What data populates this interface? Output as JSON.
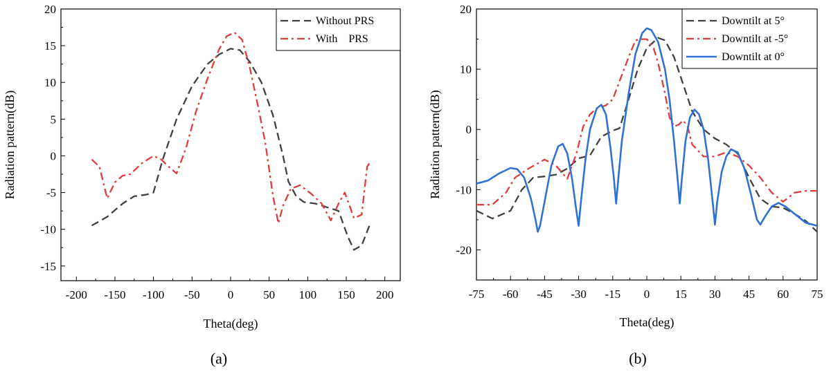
{
  "chart_data": [
    {
      "type": "line",
      "panel_label": "(a)",
      "xlabel": "Theta(deg)",
      "ylabel": "Radiation pattern(dB)",
      "xlim": [
        -220,
        220
      ],
      "ylim": [
        -17,
        20
      ],
      "xticks": [
        -200,
        -150,
        -100,
        -50,
        0,
        50,
        100,
        150,
        200
      ],
      "yticks": [
        -15,
        -10,
        -5,
        0,
        5,
        10,
        15,
        20
      ],
      "grid": false,
      "legend_position": "top-right",
      "series": [
        {
          "name": "Without PRS",
          "color": "#404040",
          "dash": "dashed",
          "points": [
            [
              -180,
              -9.5
            ],
            [
              -160,
              -8.3
            ],
            [
              -140,
              -6.5
            ],
            [
              -125,
              -5.5
            ],
            [
              -110,
              -5.3
            ],
            [
              -100,
              -5
            ],
            [
              -88,
              -0.5
            ],
            [
              -70,
              5
            ],
            [
              -50,
              9.5
            ],
            [
              -30,
              12.5
            ],
            [
              -15,
              13.8
            ],
            [
              0,
              14.6
            ],
            [
              12,
              14.4
            ],
            [
              25,
              12.8
            ],
            [
              40,
              10
            ],
            [
              55,
              5.5
            ],
            [
              68,
              0
            ],
            [
              75,
              -3.5
            ],
            [
              85,
              -5.5
            ],
            [
              95,
              -6.3
            ],
            [
              110,
              -6.5
            ],
            [
              125,
              -7
            ],
            [
              140,
              -7.5
            ],
            [
              152,
              -11
            ],
            [
              160,
              -12.8
            ],
            [
              170,
              -12.2
            ],
            [
              180,
              -9.5
            ]
          ]
        },
        {
          "name": "With    PRS",
          "color": "#e03c3c",
          "dash": "dashdot",
          "points": [
            [
              -180,
              -0.5
            ],
            [
              -170,
              -1.5
            ],
            [
              -160,
              -5.8
            ],
            [
              -150,
              -3.6
            ],
            [
              -140,
              -2.7
            ],
            [
              -130,
              -2.5
            ],
            [
              -115,
              -1
            ],
            [
              -100,
              0
            ],
            [
              -90,
              -0.5
            ],
            [
              -80,
              -1.5
            ],
            [
              -70,
              -2.4
            ],
            [
              -58,
              1
            ],
            [
              -45,
              6
            ],
            [
              -30,
              10.5
            ],
            [
              -15,
              14.5
            ],
            [
              -5,
              16.3
            ],
            [
              5,
              16.8
            ],
            [
              15,
              15.8
            ],
            [
              25,
              12
            ],
            [
              35,
              7
            ],
            [
              45,
              1.8
            ],
            [
              55,
              -5.5
            ],
            [
              62,
              -9.2
            ],
            [
              68,
              -6.8
            ],
            [
              78,
              -4.5
            ],
            [
              90,
              -4
            ],
            [
              105,
              -5.2
            ],
            [
              118,
              -6.5
            ],
            [
              130,
              -8.8
            ],
            [
              140,
              -6.5
            ],
            [
              148,
              -5
            ],
            [
              155,
              -7
            ],
            [
              160,
              -8.5
            ],
            [
              170,
              -8
            ],
            [
              177,
              -1.5
            ],
            [
              180,
              -1
            ]
          ]
        }
      ]
    },
    {
      "type": "line",
      "panel_label": "(b)",
      "xlabel": "Theta(deg)",
      "ylabel": "Radiation pattern(dB)",
      "xlim": [
        -75,
        75
      ],
      "ylim": [
        -25,
        20
      ],
      "xticks": [
        -75,
        -60,
        -45,
        -30,
        -15,
        0,
        15,
        30,
        45,
        60,
        75
      ],
      "yticks": [
        -20,
        -10,
        0,
        10,
        20
      ],
      "grid": false,
      "legend_position": "top-right",
      "series": [
        {
          "name": "Downtilt at 5°",
          "color": "#404040",
          "dash": "dashed",
          "points": [
            [
              -75,
              -13.5
            ],
            [
              -68,
              -14.8
            ],
            [
              -60,
              -13.5
            ],
            [
              -55,
              -10
            ],
            [
              -50,
              -8
            ],
            [
              -45,
              -7.8
            ],
            [
              -40,
              -7.5
            ],
            [
              -35,
              -6.5
            ],
            [
              -30,
              -4.8
            ],
            [
              -25,
              -4.3
            ],
            [
              -20,
              -1.2
            ],
            [
              -15,
              -0.2
            ],
            [
              -12,
              0.2
            ],
            [
              -8,
              5
            ],
            [
              -4,
              10
            ],
            [
              0,
              13.5
            ],
            [
              5,
              15.2
            ],
            [
              8,
              14.8
            ],
            [
              12,
              12
            ],
            [
              16,
              7.5
            ],
            [
              20,
              3
            ],
            [
              25,
              0
            ],
            [
              30,
              -1.5
            ],
            [
              35,
              -2.5
            ],
            [
              40,
              -4
            ],
            [
              45,
              -8
            ],
            [
              50,
              -11.5
            ],
            [
              55,
              -12.8
            ],
            [
              60,
              -13
            ],
            [
              65,
              -14
            ],
            [
              70,
              -15.2
            ],
            [
              75,
              -17
            ]
          ]
        },
        {
          "name": "Downtilt at -5°",
          "color": "#e03c3c",
          "dash": "dashdot",
          "points": [
            [
              -75,
              -12.5
            ],
            [
              -68,
              -12.5
            ],
            [
              -62,
              -10.5
            ],
            [
              -58,
              -8
            ],
            [
              -52,
              -6.5
            ],
            [
              -45,
              -5
            ],
            [
              -40,
              -6
            ],
            [
              -35,
              -8.2
            ],
            [
              -31,
              -4
            ],
            [
              -28,
              0.5
            ],
            [
              -25,
              2.5
            ],
            [
              -22,
              3.5
            ],
            [
              -18,
              4
            ],
            [
              -15,
              5
            ],
            [
              -12,
              8
            ],
            [
              -8,
              12
            ],
            [
              -5,
              14.8
            ],
            [
              -2,
              15
            ],
            [
              0,
              15
            ],
            [
              3,
              13.5
            ],
            [
              5,
              11
            ],
            [
              8,
              6
            ],
            [
              10,
              2
            ],
            [
              12,
              0.5
            ],
            [
              14,
              0.8
            ],
            [
              16,
              1.5
            ],
            [
              18,
              0.5
            ],
            [
              20,
              -2.5
            ],
            [
              25,
              -4.5
            ],
            [
              30,
              -4.5
            ],
            [
              35,
              -3.8
            ],
            [
              40,
              -4.5
            ],
            [
              45,
              -6
            ],
            [
              50,
              -8
            ],
            [
              55,
              -10.5
            ],
            [
              60,
              -12
            ],
            [
              65,
              -10.5
            ],
            [
              70,
              -10.2
            ],
            [
              75,
              -10.2
            ]
          ]
        },
        {
          "name": "Downtilt at 0°",
          "color": "#2f72d4",
          "dash": "solid",
          "points": [
            [
              -75,
              -9
            ],
            [
              -70,
              -8.5
            ],
            [
              -65,
              -7.3
            ],
            [
              -60,
              -6.4
            ],
            [
              -57,
              -6.6
            ],
            [
              -54,
              -8
            ],
            [
              -51,
              -11.5
            ],
            [
              -49,
              -15
            ],
            [
              -48,
              -17
            ],
            [
              -47,
              -16
            ],
            [
              -45,
              -12
            ],
            [
              -42,
              -6
            ],
            [
              -39,
              -2.8
            ],
            [
              -37,
              -2.4
            ],
            [
              -35,
              -4
            ],
            [
              -33,
              -8
            ],
            [
              -31,
              -13.5
            ],
            [
              -30,
              -16
            ],
            [
              -29,
              -12
            ],
            [
              -27,
              -5
            ],
            [
              -25,
              0
            ],
            [
              -22,
              3.5
            ],
            [
              -20,
              4.1
            ],
            [
              -18,
              2.5
            ],
            [
              -16,
              -3
            ],
            [
              -14.5,
              -8
            ],
            [
              -13.5,
              -12.3
            ],
            [
              -12.5,
              -8
            ],
            [
              -11,
              -2
            ],
            [
              -8,
              6
            ],
            [
              -5,
              12.5
            ],
            [
              -2,
              16
            ],
            [
              0,
              16.8
            ],
            [
              2,
              16.5
            ],
            [
              5,
              14.5
            ],
            [
              8,
              10
            ],
            [
              10,
              5
            ],
            [
              12,
              -2
            ],
            [
              13.5,
              -8
            ],
            [
              14.5,
              -12.3
            ],
            [
              15.5,
              -8
            ],
            [
              17,
              -2
            ],
            [
              19,
              2
            ],
            [
              21,
              3.3
            ],
            [
              23,
              2.5
            ],
            [
              25,
              0
            ],
            [
              27,
              -5
            ],
            [
              29,
              -12
            ],
            [
              30,
              -15.8
            ],
            [
              31,
              -12
            ],
            [
              33,
              -7
            ],
            [
              35,
              -4.5
            ],
            [
              37,
              -3.3
            ],
            [
              40,
              -3.8
            ],
            [
              43,
              -6.5
            ],
            [
              46,
              -11
            ],
            [
              48.5,
              -15
            ],
            [
              50,
              -15.8
            ],
            [
              52,
              -14.5
            ],
            [
              55,
              -12.8
            ],
            [
              58,
              -12.2
            ],
            [
              61,
              -12.8
            ],
            [
              65,
              -14
            ],
            [
              70,
              -15.5
            ],
            [
              75,
              -16
            ]
          ]
        }
      ]
    }
  ]
}
